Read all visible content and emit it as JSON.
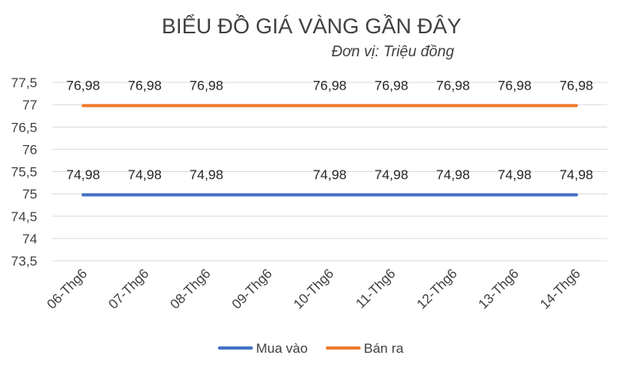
{
  "chart_data": {
    "type": "line",
    "title": "BIỂU ĐỒ GIÁ VÀNG GẦN ĐÂY",
    "subtitle": "Đơn vị: Triệu đồng",
    "categories": [
      "06-Thg6",
      "07-Thg6",
      "08-Thg6",
      "09-Thg6",
      "10-Thg6",
      "11-Thg6",
      "12-Thg6",
      "13-Thg6",
      "14-Thg6"
    ],
    "y_ticks": [
      "73,5",
      "74",
      "74,5",
      "75",
      "75,5",
      "76",
      "76,5",
      "77",
      "77,5"
    ],
    "ylim": [
      73.5,
      77.5
    ],
    "grid": true,
    "legend_position": "bottom",
    "series": [
      {
        "name": "Mua vào",
        "color": "#4472C4",
        "values": [
          74.98,
          74.98,
          74.98,
          74.98,
          74.98,
          74.98,
          74.98,
          74.98,
          74.98
        ],
        "data_labels": [
          "74,98",
          "74,98",
          "74,98",
          "",
          "74,98",
          "74,98",
          "74,98",
          "74,98",
          "74,98"
        ]
      },
      {
        "name": "Bán ra",
        "color": "#ED7D31",
        "values": [
          76.98,
          76.98,
          76.98,
          76.98,
          76.98,
          76.98,
          76.98,
          76.98,
          76.98
        ],
        "data_labels": [
          "76,98",
          "76,98",
          "76,98",
          "",
          "76,98",
          "76,98",
          "76,98",
          "76,98",
          "76,98"
        ]
      }
    ]
  }
}
